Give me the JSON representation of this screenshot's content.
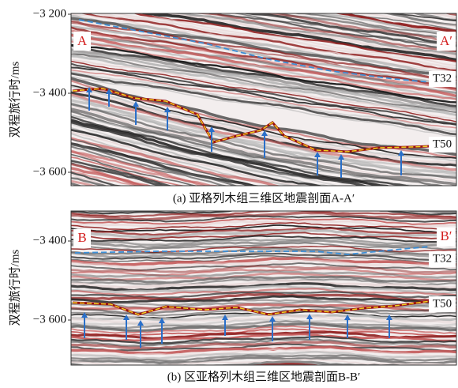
{
  "panels": [
    {
      "axis_label": "双程旅行时/ms",
      "ticks": [
        "−3 200",
        "−3 400",
        "−3 600"
      ],
      "left_marker": "A",
      "right_marker": "A′",
      "horizons": [
        "T32",
        "T50"
      ],
      "caption": "(a) 亚格列木组三维区地震剖面A-A′"
    },
    {
      "axis_label": "双程旅行时/ms",
      "ticks": [
        "−3 400",
        "−3 600"
      ],
      "left_marker": "B",
      "right_marker": "B′",
      "horizons": [
        "T32",
        "T50"
      ],
      "caption": "(b) 区亚格列木组三维区地震剖面B-B′"
    }
  ]
}
